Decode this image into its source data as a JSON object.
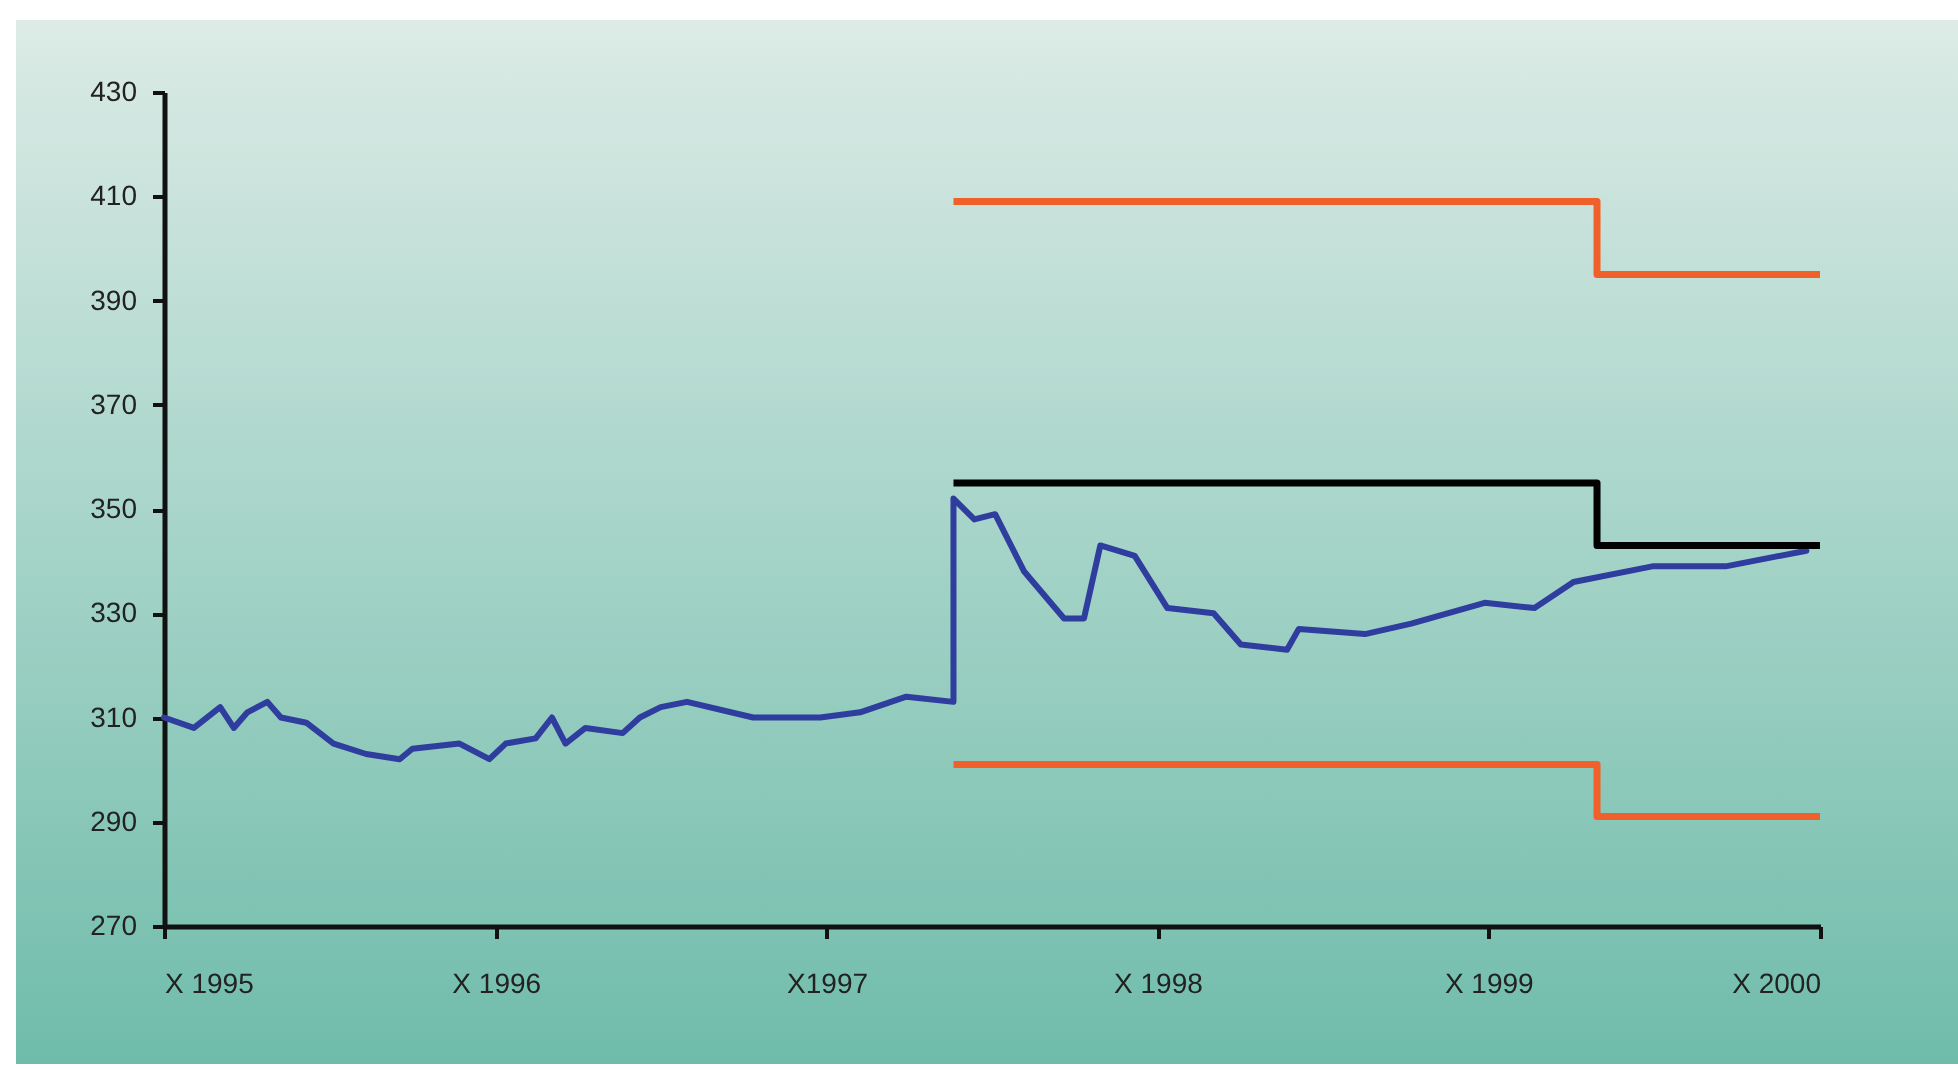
{
  "chart_data": {
    "type": "line",
    "xlim": [
      "1995-10-01",
      "2000-10-01"
    ],
    "ylim": [
      270,
      430
    ],
    "xticks": [
      {
        "value": "1995-10-01",
        "label": "X 1995"
      },
      {
        "value": "1996-10-01",
        "label": "X 1996"
      },
      {
        "value": "1997-10-01",
        "label": "X1997"
      },
      {
        "value": "1998-10-01",
        "label": "X 1998"
      },
      {
        "value": "1999-10-01",
        "label": "X 1999"
      },
      {
        "value": "2000-10-01",
        "label": "X 2000"
      }
    ],
    "yticks": [
      270,
      290,
      310,
      330,
      350,
      370,
      390,
      410,
      430
    ],
    "grid": false,
    "series": [
      {
        "color": "#2e3d9e",
        "x": [
          "1995-10-01",
          "1995-11-03",
          "1995-12-02",
          "1995-12-17",
          "1996-01-01",
          "1996-01-23",
          "1996-02-07",
          "1996-03-06",
          "1996-04-05",
          "1996-05-11",
          "1996-06-17",
          "1996-07-01",
          "1996-08-22",
          "1996-09-24",
          "1996-10-12",
          "1996-11-14",
          "1996-12-02",
          "1996-12-17",
          "1997-01-08",
          "1997-02-18",
          "1997-03-09",
          "1997-04-01",
          "1997-04-30",
          "1997-07-12",
          "1997-09-24",
          "1997-11-07",
          "1997-12-28",
          "1998-02-18",
          "1998-02-18",
          "1998-03-13",
          "1998-04-05",
          "1998-05-07",
          "1998-06-20",
          "1998-07-12",
          "1998-07-30",
          "1998-09-06",
          "1998-10-12",
          "1998-12-02",
          "1999-01-01",
          "1999-02-21",
          "1999-03-06",
          "1999-05-18",
          "1999-07-08",
          "1999-09-27",
          "1999-11-21",
          "2000-01-03",
          "2000-03-30",
          "2000-06-19",
          "2000-09-16"
        ],
        "values": [
          310,
          308,
          312,
          308,
          311,
          313,
          310,
          309,
          305,
          303,
          302,
          304,
          305,
          302,
          305,
          306,
          310,
          305,
          308,
          307,
          310,
          312,
          313,
          310,
          310,
          311,
          314,
          313,
          352,
          348,
          349,
          338,
          329,
          329,
          343,
          341,
          331,
          330,
          324,
          323,
          327,
          326,
          328,
          332,
          331,
          336,
          339,
          339,
          342
        ]
      },
      {
        "type": "step",
        "color": "#f0602a",
        "x": [
          "1998-02-18",
          "2000-01-29",
          "2000-10-01"
        ],
        "values": [
          409,
          395,
          395
        ]
      },
      {
        "type": "step",
        "color": "#000000",
        "x": [
          "1998-02-18",
          "2000-01-29",
          "2000-10-01"
        ],
        "values": [
          355,
          343,
          343
        ]
      },
      {
        "type": "step",
        "color": "#f0602a",
        "x": [
          "1998-02-18",
          "2000-01-29",
          "2000-10-01"
        ],
        "values": [
          301,
          291,
          291
        ]
      }
    ]
  }
}
